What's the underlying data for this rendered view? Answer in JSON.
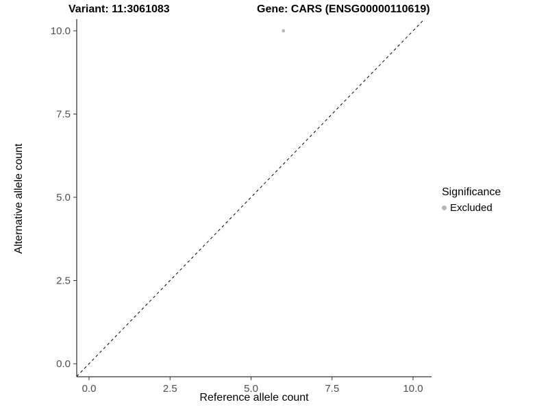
{
  "title": {
    "left": "Variant: 11:3061083",
    "right": "Gene: CARS (ENSG00000110619)"
  },
  "chart_data": {
    "type": "scatter",
    "title": "Variant: 11:3061083   Gene: CARS (ENSG00000110619)",
    "xlabel": "Reference allele count",
    "ylabel": "Alternative allele count",
    "xlim": [
      -0.38,
      10.57
    ],
    "ylim": [
      -0.39,
      10.35
    ],
    "xticks": [
      0.0,
      2.5,
      5.0,
      7.5,
      10.0
    ],
    "xtick_labels": [
      "0.0",
      "2.5",
      "5.0",
      "7.5",
      "10.0"
    ],
    "yticks": [
      0.0,
      2.5,
      5.0,
      7.5,
      10.0
    ],
    "ytick_labels": [
      "0.0",
      "2.5",
      "5.0",
      "7.5",
      "10.0"
    ],
    "grid": false,
    "reference_line": {
      "type": "identity",
      "equation": "y = x",
      "style": "dashed",
      "color": "#000000"
    },
    "series": [
      {
        "name": "Excluded",
        "color": "#b8b8b8",
        "points": [
          {
            "x": 6,
            "y": 10
          }
        ],
        "point_radius": 2.4
      }
    ],
    "legend": {
      "title": "Significance",
      "position": "right",
      "items": [
        {
          "label": "Excluded",
          "color": "#b8b8b8"
        }
      ]
    },
    "axis": {
      "line_color": "#000000",
      "tick_color": "#333333",
      "tick_label_color": "#4d4d4d"
    }
  }
}
